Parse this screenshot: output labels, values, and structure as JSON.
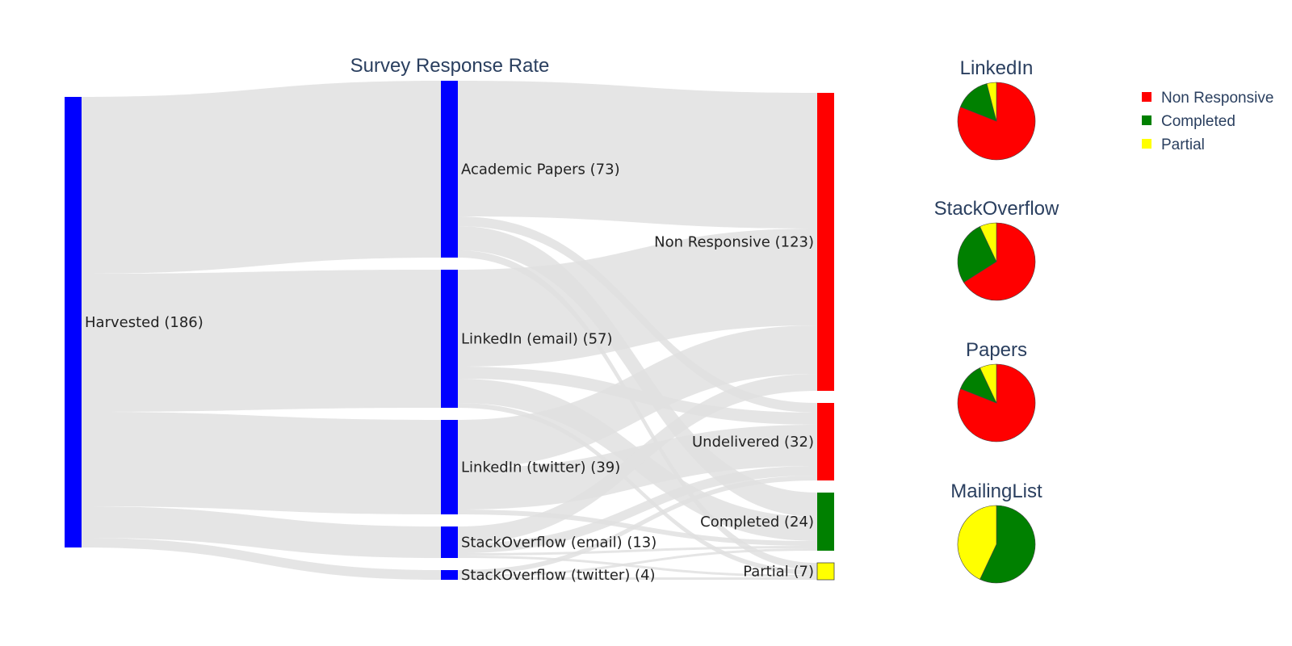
{
  "chart_data": [
    {
      "type": "sankey",
      "title": "Survey Response Rate",
      "nodes": [
        {
          "id": "harvested",
          "label": "Harvested (186)",
          "value": 186,
          "color": "#0000ff"
        },
        {
          "id": "papers",
          "label": "Academic Papers (73)",
          "value": 73,
          "color": "#0000ff"
        },
        {
          "id": "li_email",
          "label": "LinkedIn (email) (57)",
          "value": 57,
          "color": "#0000ff"
        },
        {
          "id": "li_twitter",
          "label": "LinkedIn (twitter) (39)",
          "value": 39,
          "color": "#0000ff"
        },
        {
          "id": "so_email",
          "label": "StackOverflow (email) (13)",
          "value": 13,
          "color": "#0000ff"
        },
        {
          "id": "so_twitter",
          "label": "StackOverflow (twitter) (4)",
          "value": 4,
          "color": "#0000ff"
        },
        {
          "id": "nonresp",
          "label": "Non Responsive (123)",
          "value": 123,
          "color": "#ff0000"
        },
        {
          "id": "undeliv",
          "label": "Undelivered (32)",
          "value": 32,
          "color": "#ff0000"
        },
        {
          "id": "completed",
          "label": "Completed (24)",
          "value": 24,
          "color": "#008000"
        },
        {
          "id": "partial",
          "label": "Partial (7)",
          "value": 7,
          "color": "#ffff00"
        }
      ],
      "links": [
        {
          "source": "harvested",
          "target": "papers",
          "value": 73
        },
        {
          "source": "harvested",
          "target": "li_email",
          "value": 57
        },
        {
          "source": "harvested",
          "target": "li_twitter",
          "value": 39
        },
        {
          "source": "harvested",
          "target": "so_email",
          "value": 13
        },
        {
          "source": "harvested",
          "target": "so_twitter",
          "value": 4
        },
        {
          "source": "papers",
          "target": "nonresp",
          "value": 56
        },
        {
          "source": "papers",
          "target": "undeliv",
          "value": 4
        },
        {
          "source": "papers",
          "target": "completed",
          "value": 10
        },
        {
          "source": "papers",
          "target": "partial",
          "value": 3
        },
        {
          "source": "li_email",
          "target": "nonresp",
          "value": 40
        },
        {
          "source": "li_email",
          "target": "undeliv",
          "value": 5
        },
        {
          "source": "li_email",
          "target": "completed",
          "value": 10
        },
        {
          "source": "li_email",
          "target": "partial",
          "value": 2
        },
        {
          "source": "li_twitter",
          "target": "nonresp",
          "value": 20
        },
        {
          "source": "li_twitter",
          "target": "undeliv",
          "value": 17
        },
        {
          "source": "li_twitter",
          "target": "completed",
          "value": 2
        },
        {
          "source": "so_email",
          "target": "nonresp",
          "value": 7
        },
        {
          "source": "so_email",
          "target": "undeliv",
          "value": 4
        },
        {
          "source": "so_email",
          "target": "completed",
          "value": 1
        },
        {
          "source": "so_email",
          "target": "partial",
          "value": 1
        },
        {
          "source": "so_twitter",
          "target": "undeliv",
          "value": 2
        },
        {
          "source": "so_twitter",
          "target": "completed",
          "value": 1
        },
        {
          "source": "so_twitter",
          "target": "partial",
          "value": 1
        }
      ],
      "link_color": "#e1e1e1"
    },
    {
      "type": "pie",
      "title": "LinkedIn",
      "categories": [
        "Non Responsive",
        "Completed",
        "Partial"
      ],
      "values": [
        81,
        15,
        4
      ]
    },
    {
      "type": "pie",
      "title": "StackOverflow",
      "categories": [
        "Non Responsive",
        "Completed",
        "Partial"
      ],
      "values": [
        66,
        27,
        7
      ]
    },
    {
      "type": "pie",
      "title": "Papers",
      "categories": [
        "Non Responsive",
        "Completed",
        "Partial"
      ],
      "values": [
        81,
        12,
        7
      ]
    },
    {
      "type": "pie",
      "title": "MailingList",
      "categories": [
        "Non Responsive",
        "Completed",
        "Partial"
      ],
      "values": [
        0,
        57,
        43
      ]
    }
  ],
  "legend": {
    "placement": "top-right",
    "items": [
      {
        "label": "Non Responsive",
        "color": "#ff0000"
      },
      {
        "label": "Completed",
        "color": "#008000"
      },
      {
        "label": "Partial",
        "color": "#ffff00"
      }
    ]
  }
}
